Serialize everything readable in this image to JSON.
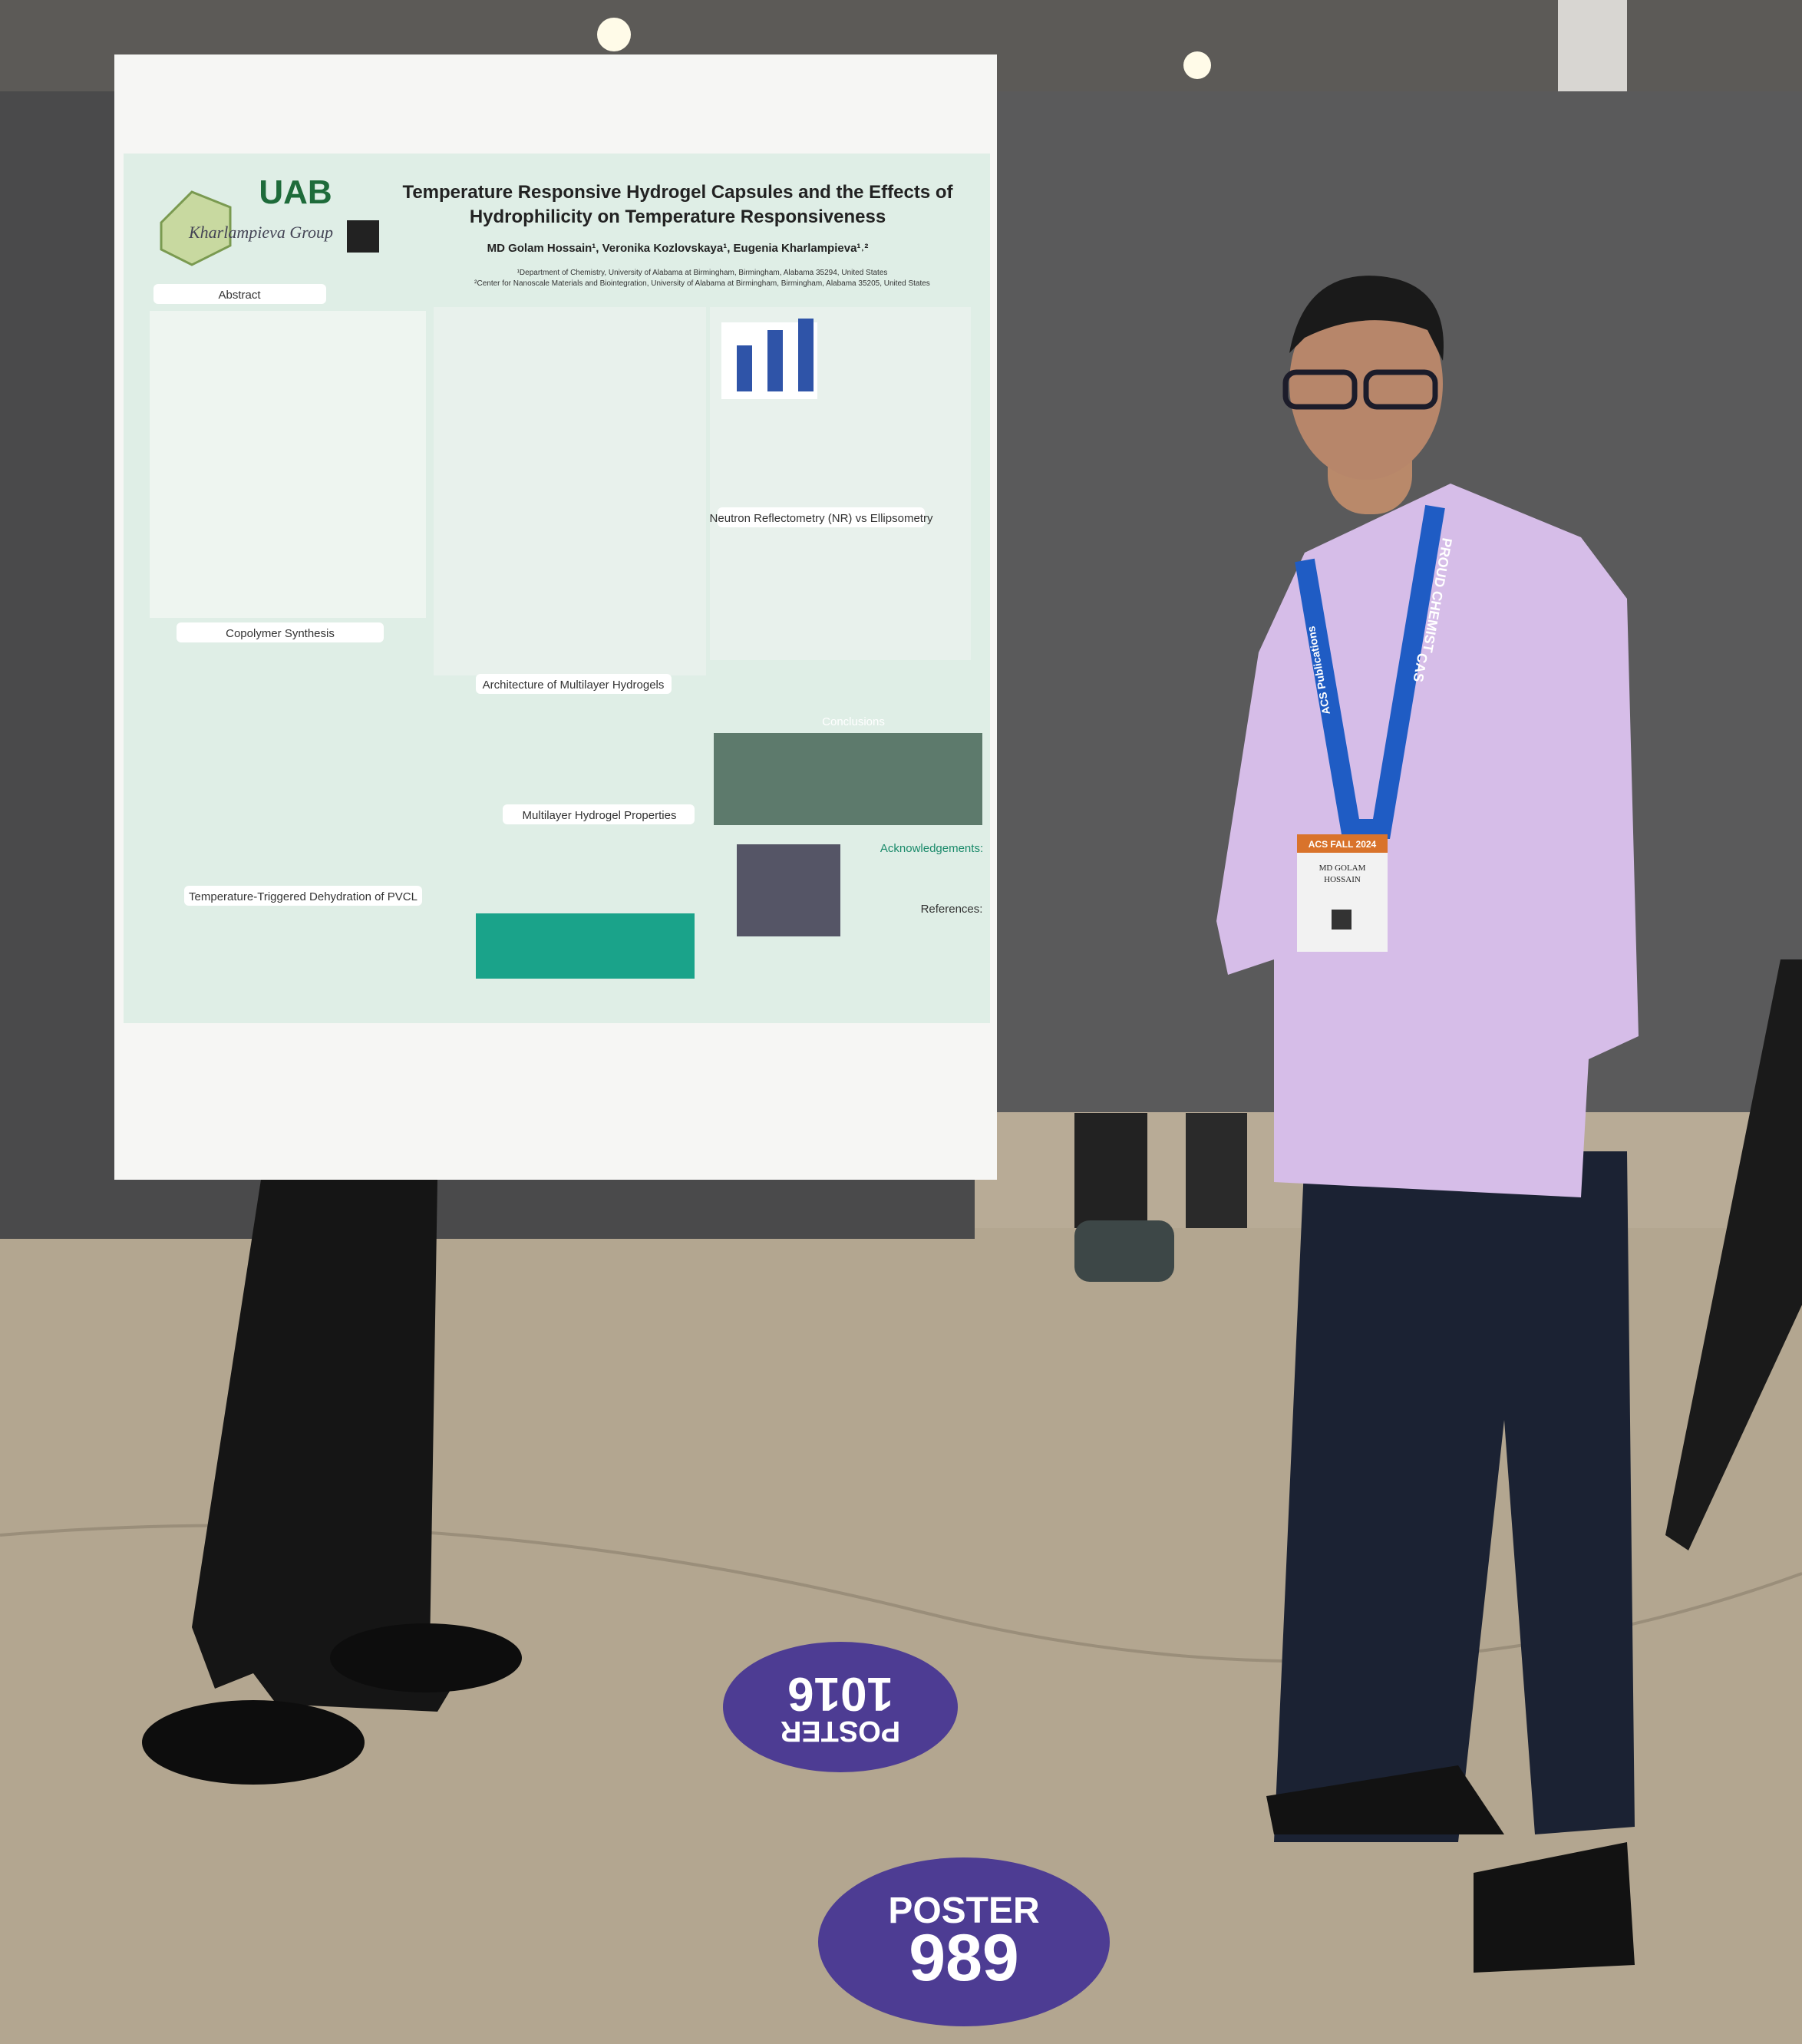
{
  "poster": {
    "logo": "UAB",
    "group": "Kharlampieva Group",
    "title_lines": [
      "Temperature Responsive Hydrogel Capsules and the Effects of",
      "Hydrophilicity on Temperature Responsiveness"
    ],
    "authors": "MD Golam Hossain¹, Veronika Kozlovskaya¹, Eugenia Kharlampieva¹˒²",
    "affiliations": [
      "¹Department of Chemistry, University of Alabama at Birmingham, Birmingham, Alabama 35294, United States",
      "²Center for Nanoscale Materials and Biointegration, University of Alabama at Birmingham, Birmingham, Alabama 35205, United States"
    ],
    "sections": [
      "Abstract",
      "Copolymer Synthesis",
      "Temperature-Triggered Dehydration of PVCL",
      "Architecture of Multilayer Hydrogels",
      "Multilayer Hydrogel Properties",
      "Neutron Reflectometry (NR) vs Ellipsometry",
      "Conclusions",
      "Acknowledgements:",
      "References:"
    ]
  },
  "badge": {
    "event": "ACS FALL 2024",
    "name_lines": [
      "MD GOLAM",
      "HOSSAIN"
    ]
  },
  "lanyard": [
    "PROUD CHEMIST",
    "CAS",
    "ACS Publications"
  ],
  "floor_markers": [
    {
      "label": "POSTER",
      "number": "989"
    },
    {
      "label": "POSTER",
      "number": "1016"
    }
  ]
}
